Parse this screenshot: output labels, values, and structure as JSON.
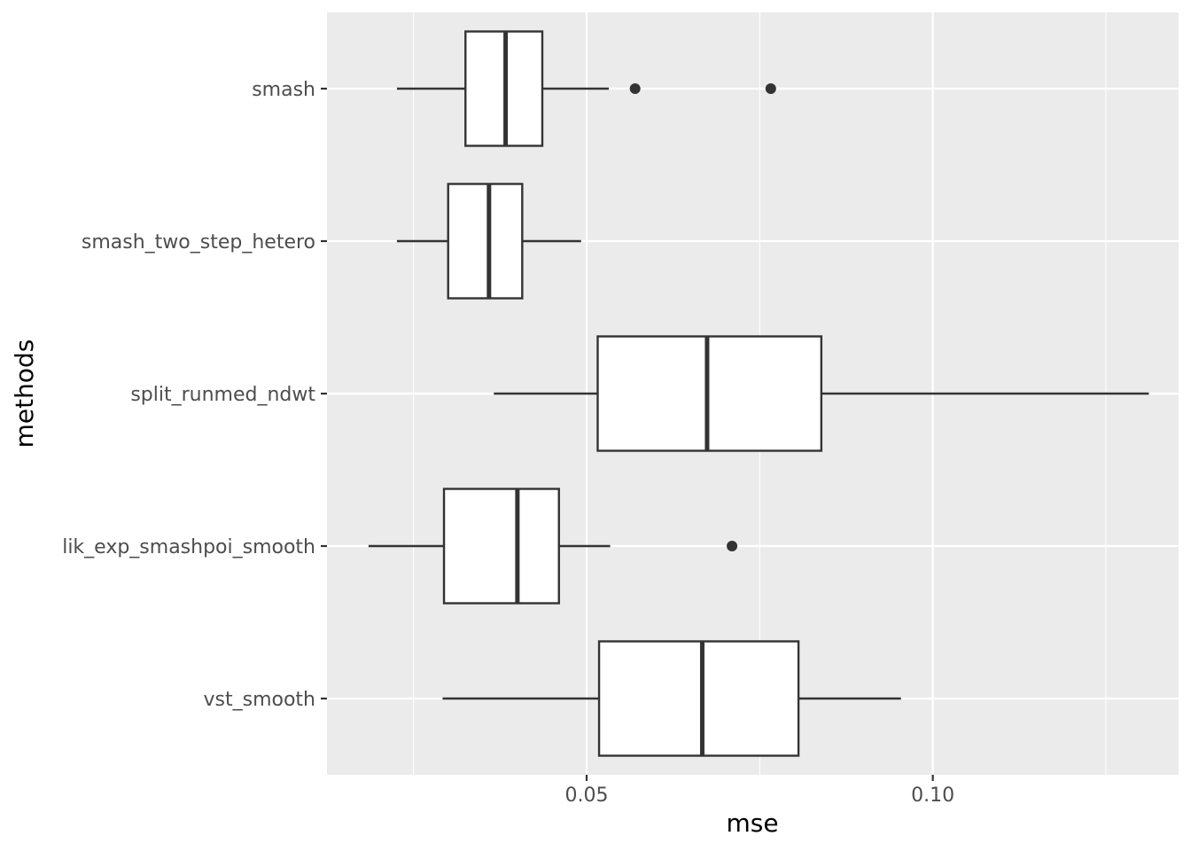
{
  "chart_data": {
    "type": "boxplot",
    "orientation": "horizontal",
    "title": "",
    "xlabel": "mse",
    "ylabel": "methods",
    "xlim": [
      0.0125,
      0.1355
    ],
    "x_major_ticks": [
      0.05,
      0.1
    ],
    "x_tick_labels": [
      "0.05",
      "0.10"
    ],
    "x_minor_ticks": [
      0.025,
      0.075,
      0.125
    ],
    "grid": true,
    "categories": [
      "smash",
      "smash_two_step_hetero",
      "split_runmed_ndwt",
      "lik_exp_smashpoi_smooth",
      "vst_smooth"
    ],
    "series": [
      {
        "name": "smash",
        "whisker_low": 0.0226,
        "q1": 0.0325,
        "median": 0.0383,
        "q3": 0.0436,
        "whisker_high": 0.0532,
        "outliers": [
          0.057,
          0.0766
        ]
      },
      {
        "name": "smash_two_step_hetero",
        "whisker_low": 0.0226,
        "q1": 0.03,
        "median": 0.0359,
        "q3": 0.0407,
        "whisker_high": 0.0492,
        "outliers": []
      },
      {
        "name": "split_runmed_ndwt",
        "whisker_low": 0.0366,
        "q1": 0.0516,
        "median": 0.0674,
        "q3": 0.0839,
        "whisker_high": 0.1312,
        "outliers": []
      },
      {
        "name": "lik_exp_smashpoi_smooth",
        "whisker_low": 0.0185,
        "q1": 0.0294,
        "median": 0.04,
        "q3": 0.046,
        "whisker_high": 0.0534,
        "outliers": [
          0.071
        ]
      },
      {
        "name": "vst_smooth",
        "whisker_low": 0.0292,
        "q1": 0.0518,
        "median": 0.0667,
        "q3": 0.0806,
        "whisker_high": 0.0954,
        "outliers": []
      }
    ]
  }
}
